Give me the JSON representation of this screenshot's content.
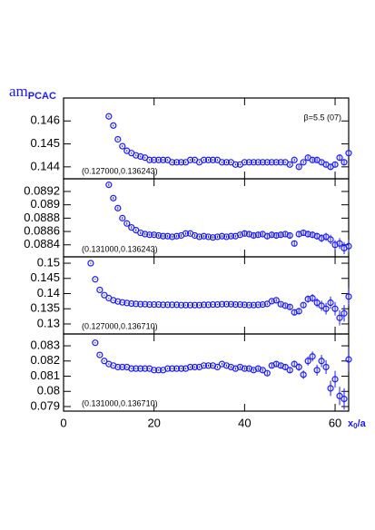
{
  "chart_data": [
    {
      "type": "scatter",
      "ylabel": "am",
      "ylabel_sub": "PCAC",
      "annotation": "(0.127000,0.136243)",
      "note": "β=5.5 (07)",
      "color": "#1a1aff",
      "xlim": [
        0,
        63
      ],
      "xticks": [
        0,
        20,
        40,
        60
      ],
      "ylim": [
        0.14348,
        0.147
      ],
      "yticks": [
        0.144,
        0.145,
        0.146
      ],
      "x": [
        10,
        11,
        12,
        13,
        14,
        15,
        16,
        17,
        18,
        19,
        20,
        21,
        22,
        23,
        24,
        25,
        26,
        27,
        28,
        29,
        30,
        31,
        32,
        33,
        34,
        35,
        36,
        37,
        38,
        39,
        40,
        41,
        42,
        43,
        44,
        45,
        46,
        47,
        48,
        49,
        50,
        51,
        52,
        53,
        54,
        55,
        56,
        57,
        58,
        59,
        60,
        61,
        62,
        63
      ],
      "values": [
        0.1462,
        0.1458,
        0.1452,
        0.1449,
        0.1447,
        0.1446,
        0.1445,
        0.14445,
        0.1444,
        0.1443,
        0.1443,
        0.1443,
        0.1443,
        0.1443,
        0.1442,
        0.1442,
        0.1442,
        0.1442,
        0.1443,
        0.1443,
        0.1442,
        0.1443,
        0.1443,
        0.1443,
        0.1443,
        0.1442,
        0.1442,
        0.1442,
        0.1441,
        0.1441,
        0.1442,
        0.1442,
        0.1442,
        0.1442,
        0.1442,
        0.1442,
        0.1442,
        0.1442,
        0.1442,
        0.1442,
        0.1441,
        0.1443,
        0.144,
        0.1442,
        0.1444,
        0.1443,
        0.1443,
        0.1442,
        0.1441,
        0.144,
        0.1441,
        0.1444,
        0.1442,
        0.1446
      ],
      "errors": [
        4e-05,
        4e-05,
        4e-05,
        4e-05,
        4e-05,
        4e-05,
        4e-05,
        4e-05,
        4e-05,
        4e-05,
        4e-05,
        4e-05,
        4e-05,
        4e-05,
        4e-05,
        4e-05,
        4e-05,
        4e-05,
        4e-05,
        4e-05,
        4e-05,
        4e-05,
        4e-05,
        4e-05,
        4e-05,
        4e-05,
        4e-05,
        4e-05,
        4e-05,
        4e-05,
        4e-05,
        4e-05,
        4e-05,
        4e-05,
        4e-05,
        4e-05,
        4e-05,
        4e-05,
        4e-05,
        4e-05,
        6e-05,
        6e-05,
        7e-05,
        7e-05,
        8e-05,
        8e-05,
        9e-05,
        9e-05,
        0.0001,
        0.0001,
        0.00012,
        0.00012,
        0.00014,
        0.00015
      ]
    },
    {
      "type": "scatter",
      "annotation": "(0.131000,0.136243)",
      "color": "#1a1aff",
      "xlim": [
        0,
        63
      ],
      "xticks": [
        0,
        20,
        40,
        60
      ],
      "ylim": [
        0.08822,
        0.08939
      ],
      "yticks": [
        0.0884,
        0.0886,
        0.0888,
        0.089,
        0.0892
      ],
      "x": [
        10,
        11,
        12,
        13,
        14,
        15,
        16,
        17,
        18,
        19,
        20,
        21,
        22,
        23,
        24,
        25,
        26,
        27,
        28,
        29,
        30,
        31,
        32,
        33,
        34,
        35,
        36,
        37,
        38,
        39,
        40,
        41,
        42,
        43,
        44,
        45,
        46,
        47,
        48,
        49,
        50,
        51,
        52,
        53,
        54,
        55,
        56,
        57,
        58,
        59,
        60,
        61,
        62,
        63
      ],
      "values": [
        0.0893,
        0.0891,
        0.08895,
        0.0888,
        0.08872,
        0.08866,
        0.08862,
        0.08858,
        0.08856,
        0.08855,
        0.08855,
        0.08854,
        0.08853,
        0.08853,
        0.08852,
        0.08853,
        0.08854,
        0.08857,
        0.08857,
        0.08854,
        0.08852,
        0.08853,
        0.08852,
        0.08851,
        0.08852,
        0.08853,
        0.08852,
        0.08853,
        0.08853,
        0.08855,
        0.08857,
        0.08856,
        0.08854,
        0.08855,
        0.08856,
        0.08853,
        0.08855,
        0.08854,
        0.08855,
        0.08856,
        0.08854,
        0.08842,
        0.08856,
        0.08858,
        0.08856,
        0.08855,
        0.08853,
        0.0885,
        0.08852,
        0.08848,
        0.0884,
        0.08842,
        0.08835,
        0.08838
      ],
      "errors": [
        2e-05,
        2e-05,
        2e-05,
        2e-05,
        2e-05,
        2e-05,
        2e-05,
        2e-05,
        2e-05,
        2e-05,
        2e-05,
        2e-05,
        2e-05,
        2e-05,
        2e-05,
        2e-05,
        2e-05,
        2e-05,
        2e-05,
        2e-05,
        2e-05,
        2e-05,
        2e-05,
        2e-05,
        2e-05,
        2e-05,
        2e-05,
        2e-05,
        2e-05,
        2e-05,
        3e-05,
        3e-05,
        3e-05,
        3e-05,
        3e-05,
        3e-05,
        3e-05,
        3e-05,
        3e-05,
        3e-05,
        4e-05,
        4e-05,
        4e-05,
        4e-05,
        5e-05,
        5e-05,
        5e-05,
        6e-05,
        6e-05,
        7e-05,
        7e-05,
        8e-05,
        9e-05,
        0.0001
      ]
    },
    {
      "type": "scatter",
      "annotation": "(0.127000,0.136710)",
      "color": "#1a1aff",
      "xlim": [
        0,
        63
      ],
      "xticks": [
        0,
        20,
        40,
        60
      ],
      "ylim": [
        0.1267,
        0.1521
      ],
      "yticks": [
        0.13,
        0.135,
        0.14,
        0.145,
        0.15
      ],
      "x": [
        6,
        7,
        8,
        9,
        10,
        11,
        12,
        13,
        14,
        15,
        16,
        17,
        18,
        19,
        20,
        21,
        22,
        23,
        24,
        25,
        26,
        27,
        28,
        29,
        30,
        31,
        32,
        33,
        34,
        35,
        36,
        37,
        38,
        39,
        40,
        41,
        42,
        43,
        44,
        45,
        46,
        47,
        48,
        49,
        50,
        51,
        52,
        53,
        54,
        55,
        56,
        57,
        58,
        59,
        60,
        61,
        62,
        63
      ],
      "values": [
        0.15,
        0.1447,
        0.1412,
        0.1395,
        0.1385,
        0.1378,
        0.1374,
        0.1371,
        0.1369,
        0.1367,
        0.1366,
        0.1365,
        0.1365,
        0.1364,
        0.1364,
        0.1364,
        0.1363,
        0.1363,
        0.1363,
        0.1363,
        0.1362,
        0.1362,
        0.1362,
        0.1362,
        0.1362,
        0.1363,
        0.1363,
        0.1364,
        0.1364,
        0.1365,
        0.1365,
        0.1365,
        0.1364,
        0.1364,
        0.1363,
        0.1362,
        0.1362,
        0.1363,
        0.1364,
        0.1366,
        0.1375,
        0.1378,
        0.1365,
        0.136,
        0.1356,
        0.1338,
        0.1342,
        0.1362,
        0.1382,
        0.1385,
        0.137,
        0.136,
        0.135,
        0.137,
        0.135,
        0.132,
        0.1335,
        0.139
      ],
      "errors": [
        0.0002,
        0.0002,
        0.0002,
        0.0002,
        0.0002,
        0.0002,
        0.0002,
        0.0002,
        0.0002,
        0.0002,
        0.0002,
        0.0002,
        0.0002,
        0.0002,
        0.0002,
        0.0002,
        0.0002,
        0.0002,
        0.0002,
        0.0002,
        0.0002,
        0.0002,
        0.0002,
        0.0002,
        0.0002,
        0.0002,
        0.0002,
        0.0002,
        0.0002,
        0.0002,
        0.0002,
        0.0003,
        0.0003,
        0.0003,
        0.0003,
        0.0003,
        0.0003,
        0.0003,
        0.0004,
        0.0004,
        0.0005,
        0.0005,
        0.0006,
        0.0006,
        0.0007,
        0.0008,
        0.0009,
        0.001,
        0.0012,
        0.0013,
        0.0015,
        0.0017,
        0.0019,
        0.002,
        0.0022,
        0.0025,
        0.0027,
        0.003
      ]
    },
    {
      "type": "scatter",
      "annotation": "(0.131000,0.136710)",
      "xlabel": "x",
      "xlabel_sub": "0",
      "xlabel_tail": "/a",
      "color": "#1a1aff",
      "xlim": [
        0,
        63
      ],
      "xticks": [
        0,
        20,
        40,
        60
      ],
      "ylim": [
        0.0787,
        0.08378
      ],
      "yticks": [
        0.079,
        0.08,
        0.081,
        0.082,
        0.083
      ],
      "x": [
        7,
        8,
        9,
        10,
        11,
        12,
        13,
        14,
        15,
        16,
        17,
        18,
        19,
        20,
        21,
        22,
        23,
        24,
        25,
        26,
        27,
        28,
        29,
        30,
        31,
        32,
        33,
        34,
        35,
        36,
        37,
        38,
        39,
        40,
        41,
        42,
        43,
        44,
        45,
        46,
        47,
        48,
        49,
        50,
        51,
        52,
        53,
        54,
        55,
        56,
        57,
        58,
        59,
        60,
        61,
        62,
        63
      ],
      "values": [
        0.0832,
        0.0824,
        0.082,
        0.0818,
        0.0817,
        0.0816,
        0.0816,
        0.0816,
        0.0815,
        0.0815,
        0.0815,
        0.0815,
        0.0815,
        0.0814,
        0.0814,
        0.0814,
        0.0815,
        0.0815,
        0.0815,
        0.0815,
        0.0815,
        0.0816,
        0.0816,
        0.0816,
        0.0817,
        0.0817,
        0.0817,
        0.0816,
        0.0818,
        0.0817,
        0.0816,
        0.0815,
        0.0816,
        0.0815,
        0.0815,
        0.0814,
        0.0815,
        0.0814,
        0.0812,
        0.0817,
        0.0818,
        0.0817,
        0.0816,
        0.0814,
        0.0818,
        0.0816,
        0.0811,
        0.082,
        0.0823,
        0.0814,
        0.082,
        0.0816,
        0.0802,
        0.0808,
        0.0797,
        0.0795,
        0.0821
      ],
      "errors": [
        5e-05,
        5e-05,
        5e-05,
        5e-05,
        5e-05,
        5e-05,
        5e-05,
        5e-05,
        5e-05,
        5e-05,
        5e-05,
        5e-05,
        5e-05,
        5e-05,
        5e-05,
        5e-05,
        5e-05,
        5e-05,
        5e-05,
        5e-05,
        6e-05,
        6e-05,
        6e-05,
        6e-05,
        6e-05,
        7e-05,
        7e-05,
        7e-05,
        7e-05,
        8e-05,
        8e-05,
        9e-05,
        9e-05,
        0.0001,
        0.0001,
        0.0001,
        0.00011,
        0.00012,
        0.00013,
        0.00014,
        0.00015,
        0.00016,
        0.00018,
        0.0002,
        0.00022,
        0.00025,
        0.00028,
        0.0003,
        0.00033,
        0.00036,
        0.0004,
        0.00045,
        0.0005,
        0.00055,
        0.0006,
        0.0007,
        0.0008
      ]
    }
  ]
}
